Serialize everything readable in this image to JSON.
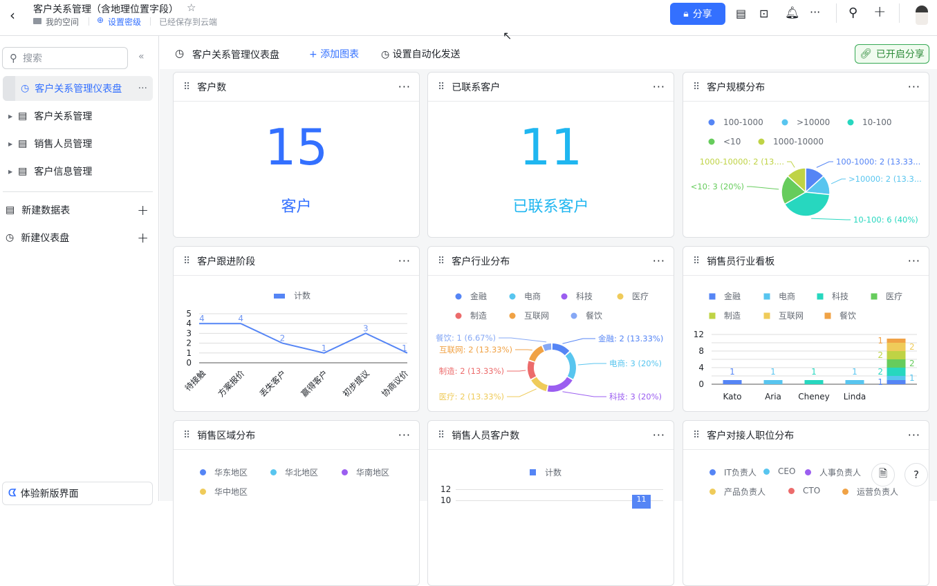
{
  "header": {
    "title": "客户关系管理（含地理位置字段）",
    "location": "我的空间",
    "security": "设置密级",
    "save_status": "已经保存到云端",
    "share_button": "分享",
    "accent": "#3370ff"
  },
  "sidebar": {
    "search_placeholder": "搜索",
    "items": [
      {
        "label": "客户关系管理仪表盘",
        "icon": "dashboard-icon"
      },
      {
        "label": "客户关系管理",
        "icon": "table-icon"
      },
      {
        "label": "销售人员管理",
        "icon": "table-icon"
      },
      {
        "label": "客户信息管理",
        "icon": "table-icon"
      }
    ],
    "new_table": "新建数据表",
    "new_dashboard": "新建仪表盘",
    "try_new": "体验新版界面"
  },
  "toolbar": {
    "title": "客户关系管理仪表盘",
    "add_chart": "添加图表",
    "automation": "设置自动化发送",
    "shared": "已开启分享"
  },
  "cards": {
    "customers": {
      "title": "客户数",
      "value": "15",
      "label": "客户",
      "color": "#3370ff"
    },
    "contacted": {
      "title": "已联系客户",
      "value": "11",
      "label": "已联系客户",
      "color": "#1fb6f0"
    },
    "scale": {
      "title": "客户规模分布"
    },
    "stage": {
      "title": "客户跟进阶段"
    },
    "industry": {
      "title": "客户行业分布"
    },
    "sales_board": {
      "title": "销售员行业看板"
    },
    "region": {
      "title": "销售区域分布",
      "legend": [
        "华东地区",
        "华北地区",
        "华南地区",
        "华中地区"
      ],
      "colors": [
        "#5585f5",
        "#58c5ef",
        "#9b5ef0",
        "#efcb5a"
      ]
    },
    "sales_count": {
      "title": "销售人员客户数",
      "legend": "计数",
      "yticks": [
        "12",
        "10"
      ],
      "bar_label": "11"
    },
    "position": {
      "title": "客户对接人职位分布",
      "legend": [
        "IT负责人",
        "CEO",
        "人事负责人",
        "产品负责人",
        "CTO",
        "运营负责人"
      ],
      "colors": [
        "#5585f5",
        "#58c5ef",
        "#9b5ef0",
        "#efcb5a",
        "#ec6b6b",
        "#f0a245"
      ]
    }
  },
  "chart_data": [
    {
      "type": "pie",
      "legend": [
        "100-1000",
        ">10000",
        "10-100",
        "<10",
        "1000-10000"
      ],
      "slices": [
        {
          "name": "100-1000",
          "value": 2,
          "label": "100-1000: 2 (13.33...",
          "color": "#5585f5"
        },
        {
          "name": ">10000",
          "value": 2,
          "label": ">10000: 2 (13.3...",
          "color": "#58c5ef"
        },
        {
          "name": "10-100",
          "value": 6,
          "label": "10-100: 6 (40%)",
          "color": "#27d7bf"
        },
        {
          "name": "<10",
          "value": 3,
          "label": "<10: 3 (20%)",
          "color": "#66cc5c"
        },
        {
          "name": "1000-10000",
          "value": 2,
          "label": "1000-10000: 2 (13....",
          "color": "#bfd345"
        }
      ]
    },
    {
      "type": "line",
      "legend": "计数",
      "categories": [
        "待接触",
        "方案报价",
        "丢失客户",
        "赢得客户",
        "初步提议",
        "协商议价"
      ],
      "values": [
        4,
        4,
        2,
        1,
        3,
        1
      ],
      "ylim": [
        0,
        5
      ],
      "yticks": [
        "0",
        "1",
        "2",
        "3",
        "4",
        "5"
      ],
      "color": "#5585f5"
    },
    {
      "type": "pie",
      "donut": true,
      "legend": [
        "金融",
        "电商",
        "科技",
        "医疗",
        "制造",
        "互联网",
        "餐饮"
      ],
      "slices": [
        {
          "name": "金融",
          "value": 2,
          "label": "金融: 2 (13.33%)",
          "color": "#5585f5"
        },
        {
          "name": "电商",
          "value": 3,
          "label": "电商: 3 (20%)",
          "color": "#58c5ef"
        },
        {
          "name": "科技",
          "value": 3,
          "label": "科技: 3 (20%)",
          "color": "#9b5ef0"
        },
        {
          "name": "医疗",
          "value": 2,
          "label": "医疗: 2 (13.33%)",
          "color": "#efcb5a"
        },
        {
          "name": "制造",
          "value": 2,
          "label": "制造: 2 (13.33%)",
          "color": "#ec6b6b"
        },
        {
          "name": "互联网",
          "value": 2,
          "label": "互联网: 2 (13.33%)",
          "color": "#f0a245"
        },
        {
          "name": "餐饮",
          "value": 1,
          "label": "餐饮: 1 (6.67%)",
          "color": "#86a8f5"
        }
      ]
    },
    {
      "type": "bar",
      "stacked": true,
      "categories": [
        "Kato",
        "Aria",
        "Cheney",
        "Linda",
        ""
      ],
      "ylim": [
        0,
        12
      ],
      "yticks": [
        "0",
        "4",
        "8",
        "12"
      ],
      "series": [
        {
          "name": "金融",
          "color": "#5585f5",
          "values": [
            1,
            0,
            0,
            0,
            1
          ]
        },
        {
          "name": "电商",
          "color": "#58c5ef",
          "values": [
            0,
            1,
            0,
            1,
            1
          ]
        },
        {
          "name": "科技",
          "color": "#27d7bf",
          "values": [
            0,
            0,
            1,
            0,
            2
          ]
        },
        {
          "name": "医疗",
          "color": "#66cc5c",
          "values": [
            0,
            0,
            0,
            0,
            2
          ]
        },
        {
          "name": "制造",
          "color": "#bfd345",
          "values": [
            0,
            0,
            0,
            0,
            2
          ]
        },
        {
          "name": "互联网",
          "color": "#efcb5a",
          "values": [
            0,
            0,
            0,
            0,
            2
          ]
        },
        {
          "name": "餐饮",
          "color": "#f0a245",
          "values": [
            0,
            0,
            0,
            0,
            1
          ]
        }
      ]
    }
  ]
}
